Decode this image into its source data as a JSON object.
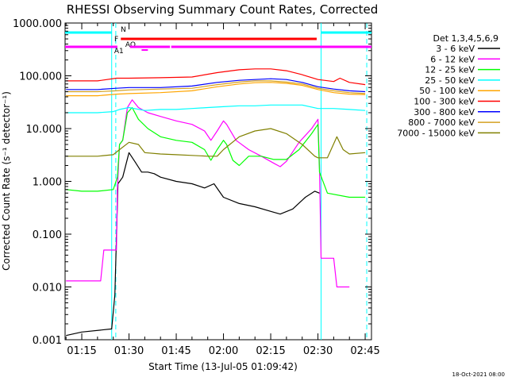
{
  "chart_data": {
    "type": "line",
    "title": "RHESSI Observing Summary Count Rates, Corrected",
    "xlabel": "Start Time (13-Jul-05 01:09:42)",
    "ylabel": "Corrected Count Rate (s⁻¹ detector⁻¹)",
    "y_scale": "log",
    "ylim": [
      0.001,
      1000
    ],
    "y_ticks": [
      "1000.000",
      "100.000",
      "10.000",
      "1.000",
      "0.100",
      "0.010",
      "0.001"
    ],
    "x_range_minutes": [
      69.7,
      167.0
    ],
    "x_ticks": [
      "01:15",
      "01:30",
      "01:45",
      "02:00",
      "02:15",
      "02:30",
      "02:45"
    ],
    "x_tick_minutes": [
      75,
      90,
      105,
      120,
      135,
      150,
      165
    ],
    "footer": "18-Oct-2021 08:00",
    "legend_header": "Det 1,3,4,5,6,9",
    "legend_position": "right",
    "series": [
      {
        "name": "3 - 6 keV",
        "color": "#000000",
        "points": [
          [
            70,
            0.0012
          ],
          [
            75,
            0.0014
          ],
          [
            84.5,
            0.0016
          ],
          [
            85.5,
            0.007
          ],
          [
            86.5,
            0.9
          ],
          [
            88,
            1.2
          ],
          [
            90,
            3.5
          ],
          [
            92,
            2.3
          ],
          [
            94,
            1.5
          ],
          [
            96,
            1.5
          ],
          [
            98,
            1.4
          ],
          [
            100,
            1.2
          ],
          [
            105,
            1.0
          ],
          [
            110,
            0.9
          ],
          [
            114,
            0.75
          ],
          [
            117,
            0.9
          ],
          [
            120,
            0.5
          ],
          [
            125,
            0.38
          ],
          [
            130,
            0.33
          ],
          [
            135,
            0.27
          ],
          [
            138,
            0.24
          ],
          [
            142,
            0.3
          ],
          [
            146,
            0.5
          ],
          [
            149,
            0.65
          ],
          [
            150.5,
            0.6
          ]
        ]
      },
      {
        "name": "6 - 12 keV",
        "color": "#ff00ff",
        "points": [
          [
            70,
            0.013
          ],
          [
            81,
            0.013
          ],
          [
            82,
            0.05
          ],
          [
            86,
            0.05
          ],
          [
            86.3,
            0.7
          ],
          [
            87,
            5
          ],
          [
            88,
            6
          ],
          [
            89.5,
            25
          ],
          [
            91,
            35
          ],
          [
            93,
            25
          ],
          [
            96,
            20
          ],
          [
            100,
            17
          ],
          [
            105,
            14
          ],
          [
            110,
            12
          ],
          [
            114,
            9
          ],
          [
            116,
            6
          ],
          [
            118,
            9
          ],
          [
            120,
            14
          ],
          [
            121,
            12
          ],
          [
            124,
            6
          ],
          [
            128,
            4
          ],
          [
            132,
            3
          ],
          [
            136,
            2.2
          ],
          [
            138,
            1.9
          ],
          [
            140,
            2.4
          ],
          [
            144,
            5.5
          ],
          [
            148,
            10
          ],
          [
            150,
            15
          ],
          [
            150.5,
            2
          ],
          [
            151,
            0.035
          ],
          [
            155,
            0.035
          ],
          [
            156,
            0.01
          ],
          [
            160,
            0.01
          ]
        ]
      },
      {
        "name": "12 - 25 keV",
        "color": "#00ff00",
        "points": [
          [
            70,
            0.7
          ],
          [
            75,
            0.65
          ],
          [
            80,
            0.65
          ],
          [
            85,
            0.7
          ],
          [
            86.3,
            1.2
          ],
          [
            87,
            5
          ],
          [
            88,
            6
          ],
          [
            89.5,
            20
          ],
          [
            91,
            25
          ],
          [
            93,
            15
          ],
          [
            96,
            10
          ],
          [
            100,
            7
          ],
          [
            105,
            6
          ],
          [
            110,
            5.5
          ],
          [
            114,
            4
          ],
          [
            116,
            2.5
          ],
          [
            118,
            4
          ],
          [
            120,
            6
          ],
          [
            121,
            5
          ],
          [
            123,
            2.5
          ],
          [
            125,
            2
          ],
          [
            128,
            3
          ],
          [
            132,
            3
          ],
          [
            136,
            2.6
          ],
          [
            140,
            2.6
          ],
          [
            144,
            4
          ],
          [
            148,
            8
          ],
          [
            150,
            12
          ],
          [
            150.5,
            1.5
          ],
          [
            153,
            0.6
          ],
          [
            160,
            0.5
          ],
          [
            165,
            0.5
          ]
        ]
      },
      {
        "name": "25 - 50 keV",
        "color": "#00ffff",
        "points": [
          [
            70,
            20
          ],
          [
            80,
            20
          ],
          [
            85,
            21
          ],
          [
            87,
            23
          ],
          [
            90,
            25
          ],
          [
            95,
            22
          ],
          [
            100,
            23
          ],
          [
            105,
            23
          ],
          [
            110,
            24
          ],
          [
            115,
            25
          ],
          [
            120,
            26
          ],
          [
            125,
            27
          ],
          [
            130,
            27
          ],
          [
            135,
            28
          ],
          [
            140,
            28
          ],
          [
            145,
            28
          ],
          [
            150,
            24
          ],
          [
            155,
            24
          ],
          [
            160,
            23
          ],
          [
            165,
            22
          ]
        ]
      },
      {
        "name": "50 - 100 keV",
        "color": "#ffa500",
        "points": [
          [
            70,
            42
          ],
          [
            80,
            42
          ],
          [
            86,
            45
          ],
          [
            90,
            46
          ],
          [
            100,
            48
          ],
          [
            110,
            52
          ],
          [
            118,
            62
          ],
          [
            125,
            70
          ],
          [
            130,
            74
          ],
          [
            135,
            75
          ],
          [
            140,
            72
          ],
          [
            145,
            66
          ],
          [
            150,
            55
          ],
          [
            155,
            48
          ],
          [
            160,
            45
          ],
          [
            165,
            44
          ]
        ]
      },
      {
        "name": "100 - 300 keV",
        "color": "#ff0000",
        "points": [
          [
            70,
            80
          ],
          [
            80,
            80
          ],
          [
            86,
            90
          ],
          [
            90,
            90
          ],
          [
            100,
            92
          ],
          [
            110,
            95
          ],
          [
            118,
            115
          ],
          [
            125,
            130
          ],
          [
            130,
            135
          ],
          [
            135,
            135
          ],
          [
            140,
            125
          ],
          [
            145,
            105
          ],
          [
            150,
            85
          ],
          [
            155,
            78
          ],
          [
            157,
            90
          ],
          [
            160,
            75
          ],
          [
            165,
            68
          ]
        ]
      },
      {
        "name": "300 - 800 keV",
        "color": "#0000ff",
        "points": [
          [
            70,
            55
          ],
          [
            80,
            55
          ],
          [
            86,
            58
          ],
          [
            90,
            60
          ],
          [
            100,
            60
          ],
          [
            110,
            64
          ],
          [
            118,
            75
          ],
          [
            125,
            82
          ],
          [
            130,
            85
          ],
          [
            135,
            88
          ],
          [
            140,
            85
          ],
          [
            145,
            75
          ],
          [
            150,
            62
          ],
          [
            155,
            56
          ],
          [
            160,
            52
          ],
          [
            165,
            50
          ]
        ]
      },
      {
        "name": "800 - 7000 keV",
        "color": "#d4a020",
        "points": [
          [
            70,
            50
          ],
          [
            80,
            50
          ],
          [
            86,
            52
          ],
          [
            90,
            54
          ],
          [
            100,
            56
          ],
          [
            110,
            58
          ],
          [
            118,
            68
          ],
          [
            125,
            76
          ],
          [
            130,
            80
          ],
          [
            135,
            80
          ],
          [
            140,
            76
          ],
          [
            145,
            70
          ],
          [
            150,
            58
          ],
          [
            155,
            52
          ],
          [
            160,
            48
          ],
          [
            165,
            46
          ]
        ]
      },
      {
        "name": "7000 - 15000 keV",
        "color": "#808000",
        "points": [
          [
            70,
            3
          ],
          [
            80,
            3
          ],
          [
            85,
            3.2
          ],
          [
            87,
            4
          ],
          [
            90,
            5.5
          ],
          [
            93,
            5
          ],
          [
            95,
            3.5
          ],
          [
            100,
            3.3
          ],
          [
            105,
            3.2
          ],
          [
            110,
            3.1
          ],
          [
            115,
            3
          ],
          [
            118,
            3
          ],
          [
            120,
            4
          ],
          [
            125,
            7
          ],
          [
            130,
            9
          ],
          [
            135,
            10
          ],
          [
            140,
            8
          ],
          [
            145,
            5
          ],
          [
            149,
            3
          ],
          [
            150,
            2.8
          ],
          [
            153,
            2.8
          ],
          [
            156,
            7
          ],
          [
            158,
            4
          ],
          [
            160,
            3.3
          ],
          [
            165,
            3.5
          ]
        ]
      }
    ],
    "flag_bars": [
      {
        "label": "N",
        "color": "#00ffff",
        "segments": [
          [
            69.7,
            84.5
          ],
          [
            151,
            167
          ]
        ]
      },
      {
        "label": "F",
        "color": "#ff0000",
        "segments": [
          [
            87.4,
            149.6
          ]
        ]
      },
      {
        "label": "AQ",
        "color": "#ff00ff",
        "segments": [
          [
            94,
            96
          ]
        ]
      },
      {
        "label": "A1",
        "color": "#ff00ff",
        "segments": [
          [
            69.7,
            86.3
          ],
          [
            90.3,
            103
          ],
          [
            103.4,
            167
          ]
        ]
      }
    ],
    "vertical_lines": {
      "solid_minutes": [
        84.5,
        151
      ],
      "dashed_minutes": [
        85.8,
        165.5
      ]
    }
  }
}
